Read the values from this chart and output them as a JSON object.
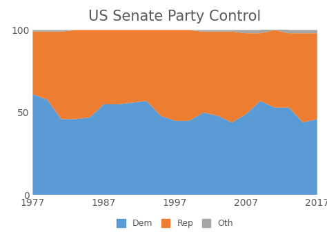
{
  "title": "US Senate Party Control",
  "years": [
    1977,
    1979,
    1981,
    1983,
    1985,
    1987,
    1989,
    1991,
    1993,
    1995,
    1997,
    1999,
    2001,
    2003,
    2005,
    2007,
    2009,
    2011,
    2013,
    2015,
    2017
  ],
  "dem": [
    61,
    58,
    46,
    46,
    47,
    55,
    55,
    56,
    57,
    48,
    45,
    45,
    50,
    48,
    44,
    49,
    57,
    53,
    53,
    44,
    46
  ],
  "rep": [
    38,
    41,
    53,
    54,
    53,
    45,
    45,
    44,
    43,
    52,
    55,
    55,
    49,
    51,
    55,
    49,
    41,
    47,
    45,
    54,
    52
  ],
  "oth": [
    1,
    1,
    1,
    0,
    0,
    0,
    0,
    0,
    0,
    0,
    0,
    0,
    1,
    1,
    1,
    2,
    2,
    2,
    2,
    2,
    2
  ],
  "dem_color": "#5B9BD5",
  "rep_color": "#ED7D31",
  "oth_color": "#A5A5A5",
  "background_color": "#FFFFFF",
  "ylim": [
    0,
    100
  ],
  "xlim": [
    1977,
    2017
  ],
  "xticks": [
    1977,
    1987,
    1997,
    2007,
    2017
  ],
  "yticks": [
    0,
    50,
    100
  ],
  "legend_labels": [
    "Dem",
    "Rep",
    "Oth"
  ],
  "title_fontsize": 15,
  "tick_fontsize": 10,
  "title_color": "#595959"
}
